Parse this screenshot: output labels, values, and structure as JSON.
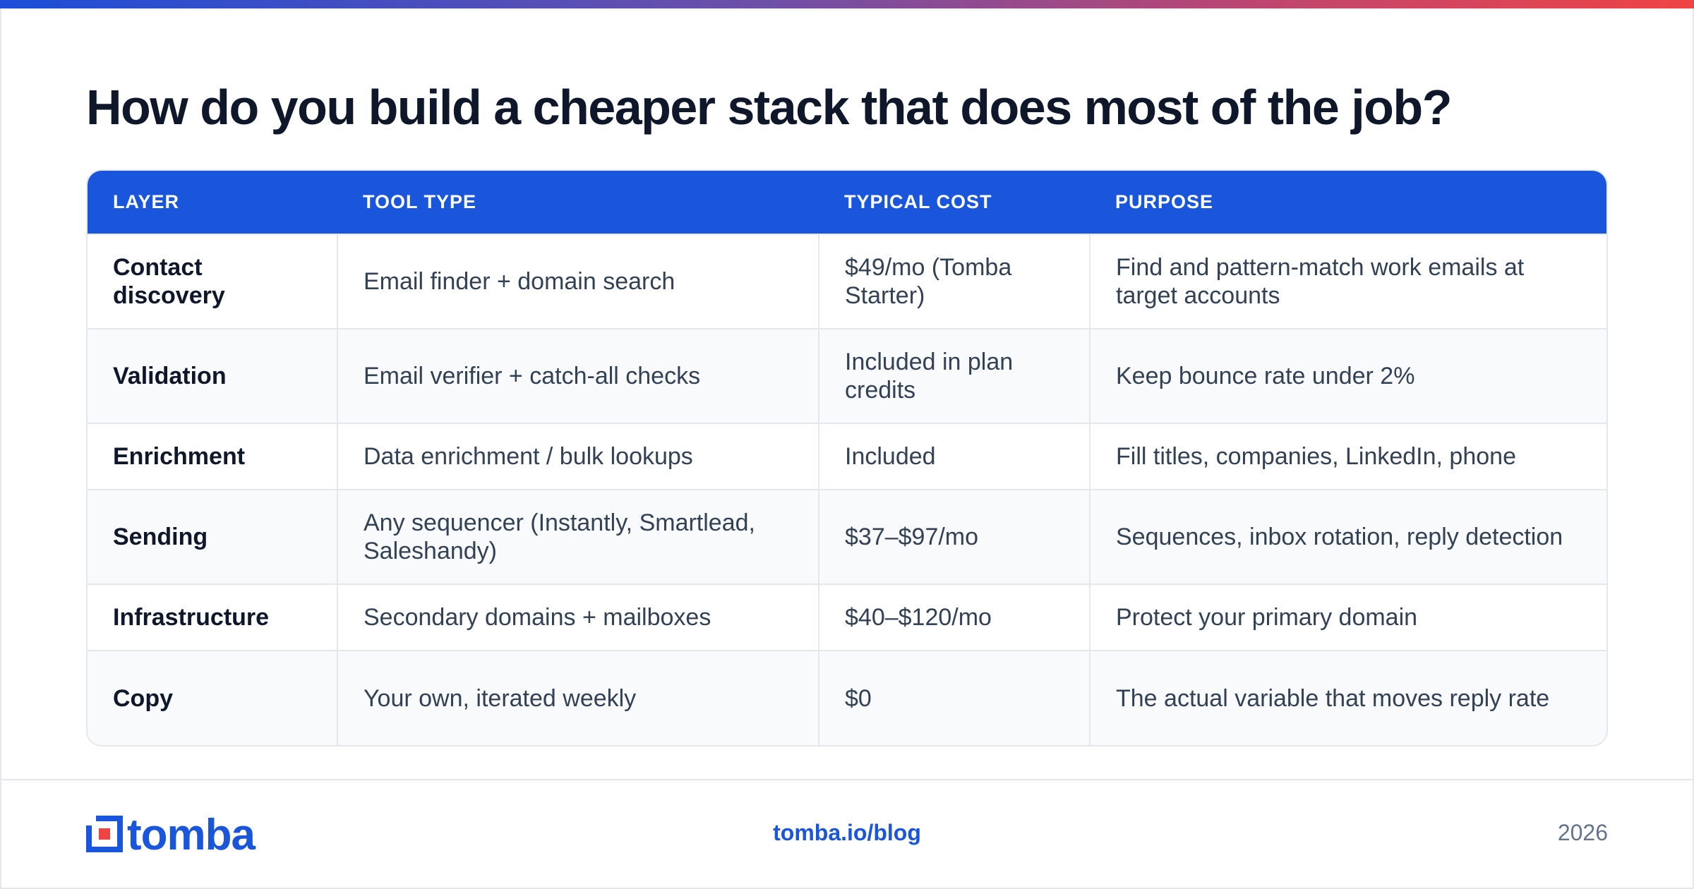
{
  "title": "How do you build a cheaper stack that does most of the job?",
  "table": {
    "headers": [
      "LAYER",
      "TOOL TYPE",
      "TYPICAL COST",
      "PURPOSE"
    ],
    "rows": [
      [
        "Contact discovery",
        "Email finder + domain search",
        "$49/mo (Tomba Starter)",
        "Find and pattern-match work emails at target accounts"
      ],
      [
        "Validation",
        "Email verifier + catch-all checks",
        "Included in plan credits",
        "Keep bounce rate under 2%"
      ],
      [
        "Enrichment",
        "Data enrichment / bulk lookups",
        "Included",
        "Fill titles, companies, LinkedIn, phone"
      ],
      [
        "Sending",
        "Any sequencer (Instantly, Smartlead, Saleshandy)",
        "$37–$97/mo",
        "Sequences, inbox rotation, reply detection"
      ],
      [
        "Infrastructure",
        "Secondary domains + mailboxes",
        "$40–$120/mo",
        "Protect your primary domain"
      ],
      [
        "Copy",
        "Your own, iterated weekly",
        "$0",
        "The actual variable that moves reply rate"
      ]
    ]
  },
  "footer": {
    "logo_text": "tomba",
    "link": "tomba.io/blog",
    "year": "2026"
  },
  "colors": {
    "accent": "#1a56db",
    "logo_red": "#ef4444"
  },
  "icons": {
    "logo": "tomba-logo-icon"
  }
}
